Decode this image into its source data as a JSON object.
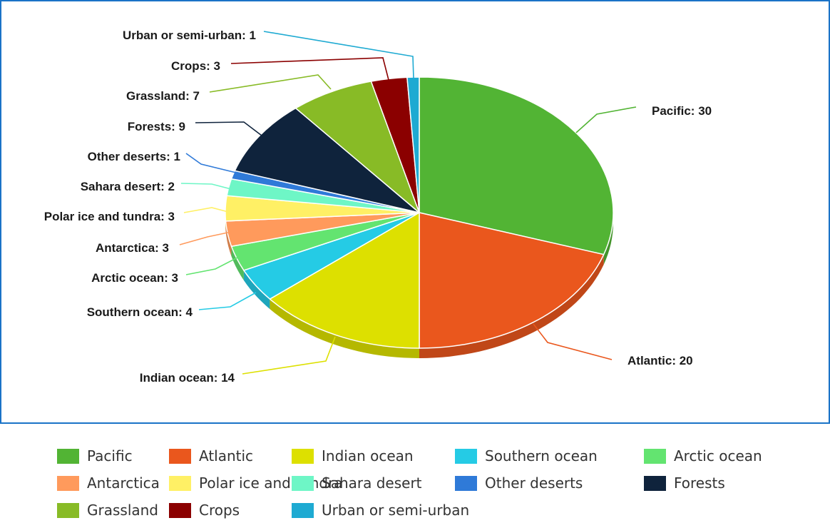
{
  "chart_data": {
    "type": "pie",
    "title": "",
    "legend_position": "bottom",
    "slices": [
      {
        "label": "Pacific",
        "value": 30,
        "color": "#52b434"
      },
      {
        "label": "Atlantic",
        "value": 20,
        "color": "#ea571d"
      },
      {
        "label": "Indian ocean",
        "value": 14,
        "color": "#dde000"
      },
      {
        "label": "Southern ocean",
        "value": 4,
        "color": "#25cbe5"
      },
      {
        "label": "Arctic ocean",
        "value": 3,
        "color": "#63e470"
      },
      {
        "label": "Antarctica",
        "value": 3,
        "color": "#ff9a5c"
      },
      {
        "label": "Polar ice and tundra",
        "value": 3,
        "color": "#fff065"
      },
      {
        "label": "Sahara desert",
        "value": 2,
        "color": "#6ef6c6"
      },
      {
        "label": "Other deserts",
        "value": 1,
        "color": "#2f7ad8"
      },
      {
        "label": "Forests",
        "value": 9,
        "color": "#0f233c"
      },
      {
        "label": "Grassland",
        "value": 7,
        "color": "#88bb26"
      },
      {
        "label": "Crops",
        "value": 3,
        "color": "#8b0000"
      },
      {
        "label": "Urban or semi-urban",
        "value": 1,
        "color": "#1eaad2"
      }
    ],
    "data_label_texts": [
      "Pacific: 30",
      "Atlantic: 20",
      "Indian ocean: 14",
      "Southern ocean: 4",
      "Arctic ocean: 3",
      "Antarctica: 3",
      "Polar ice and tundra: 3",
      "Sahara desert: 2",
      "Other deserts: 1",
      "Forests: 9",
      "Grassland: 7",
      "Crops: 3",
      "Urban or semi-urban: 1"
    ]
  },
  "legend": {
    "items": [
      "Pacific",
      "Atlantic",
      "Indian ocean",
      "Southern ocean",
      "Arctic ocean",
      "Antarctica",
      "Polar ice and tundra",
      "Sahara desert",
      "Other deserts",
      "Forests",
      "Grassland",
      "Crops",
      "Urban or semi-urban"
    ]
  }
}
